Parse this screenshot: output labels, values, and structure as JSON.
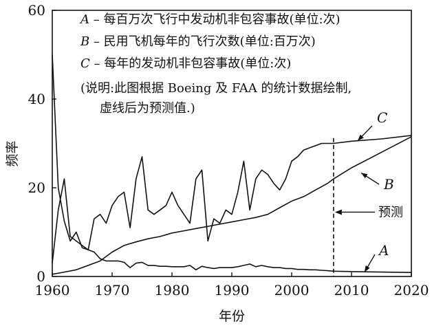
{
  "chart_data": {
    "type": "line",
    "xlabel": "年份",
    "ylabel": "频率",
    "xlim": [
      1960,
      2020
    ],
    "ylim": [
      0,
      60
    ],
    "x_ticks": [
      "1960",
      "1970",
      "1980",
      "1990",
      "2000",
      "2010",
      "2020"
    ],
    "y_ticks": [
      "0",
      "20",
      "40",
      "60"
    ],
    "legend": [
      {
        "letter": "A",
        "text": " – 每百万次飞行中发动机非包容事故(单位:次)"
      },
      {
        "letter": "B",
        "text": " – 民用飞机每年的飞行次数(单位:百万次)"
      },
      {
        "letter": "C",
        "text": " – 每年的发动机非包容事故(单位:次)"
      }
    ],
    "note": [
      "(说明:此图根据 Boeing 及 FAA 的统计数据绘制,",
      "虚线后为预测值.)"
    ],
    "forecast_year": 2007,
    "forecast_label": "预测",
    "series": [
      {
        "name": "A",
        "x": [
          1960,
          1961,
          1962,
          1963,
          1964,
          1965,
          1966,
          1967,
          1968,
          1969,
          1970,
          1971,
          1972,
          1973,
          1974,
          1975,
          1976,
          1977,
          1978,
          1979,
          1980,
          1981,
          1982,
          1983,
          1984,
          1985,
          1986,
          1987,
          1988,
          1989,
          1990,
          1991,
          1992,
          1993,
          1994,
          1995,
          1996,
          1997,
          1998,
          1999,
          2000,
          2001,
          2002,
          2003,
          2004,
          2005,
          2006,
          2007,
          2010,
          2015,
          2020
        ],
        "y": [
          50,
          20,
          12.5,
          8,
          10,
          6.5,
          6,
          5.5,
          4,
          3.5,
          3.5,
          3.5,
          3.2,
          2,
          3,
          3.2,
          2.5,
          2.5,
          2.3,
          2.3,
          2.2,
          2.2,
          2.2,
          2.5,
          1.5,
          2.3,
          2,
          1.8,
          2,
          2,
          2,
          2.2,
          2.5,
          2.8,
          2.2,
          2.5,
          2.2,
          2,
          2,
          1.8,
          1.8,
          1.6,
          1.6,
          1.5,
          1.5,
          1.4,
          1.3,
          1.2,
          1.1,
          1.0,
          0.9
        ]
      },
      {
        "name": "B",
        "x": [
          1960,
          1962,
          1964,
          1966,
          1968,
          1970,
          1972,
          1974,
          1976,
          1978,
          1980,
          1982,
          1984,
          1986,
          1988,
          1990,
          1992,
          1994,
          1996,
          1998,
          2000,
          2002,
          2004,
          2006,
          2007,
          2010,
          2015,
          2020
        ],
        "y": [
          0.5,
          1,
          1.5,
          2.5,
          3.5,
          5.5,
          7,
          7.8,
          8.5,
          9,
          9.8,
          10.3,
          10.8,
          11.3,
          11.8,
          12.3,
          12.8,
          13.3,
          14,
          15.5,
          17,
          18,
          19.5,
          21,
          22,
          24.5,
          28,
          31.5
        ]
      },
      {
        "name": "C",
        "x": [
          1960,
          1961,
          1962,
          1963,
          1964,
          1965,
          1966,
          1967,
          1968,
          1969,
          1970,
          1971,
          1972,
          1973,
          1974,
          1975,
          1976,
          1977,
          1978,
          1979,
          1980,
          1981,
          1982,
          1983,
          1984,
          1985,
          1986,
          1987,
          1988,
          1989,
          1990,
          1991,
          1992,
          1993,
          1994,
          1995,
          1996,
          1997,
          1998,
          1999,
          2000,
          2001,
          2002,
          2003,
          2004,
          2005,
          2006,
          2007,
          2010,
          2015,
          2020
        ],
        "y": [
          3,
          15,
          22,
          9,
          8,
          7,
          6,
          13,
          14,
          12,
          16,
          18,
          19,
          11,
          22,
          27,
          15,
          14,
          15,
          16,
          19,
          16,
          14,
          12,
          22,
          24,
          8,
          13,
          12,
          15,
          14,
          19,
          26,
          15,
          22,
          24,
          23,
          21,
          19.5,
          22,
          26,
          27,
          28.5,
          29,
          29.5,
          30,
          30,
          30,
          30.5,
          31,
          31.8
        ]
      }
    ],
    "series_labels": [
      {
        "series": "A",
        "text": "A"
      },
      {
        "series": "B",
        "text": "B"
      },
      {
        "series": "C",
        "text": "C"
      }
    ]
  }
}
